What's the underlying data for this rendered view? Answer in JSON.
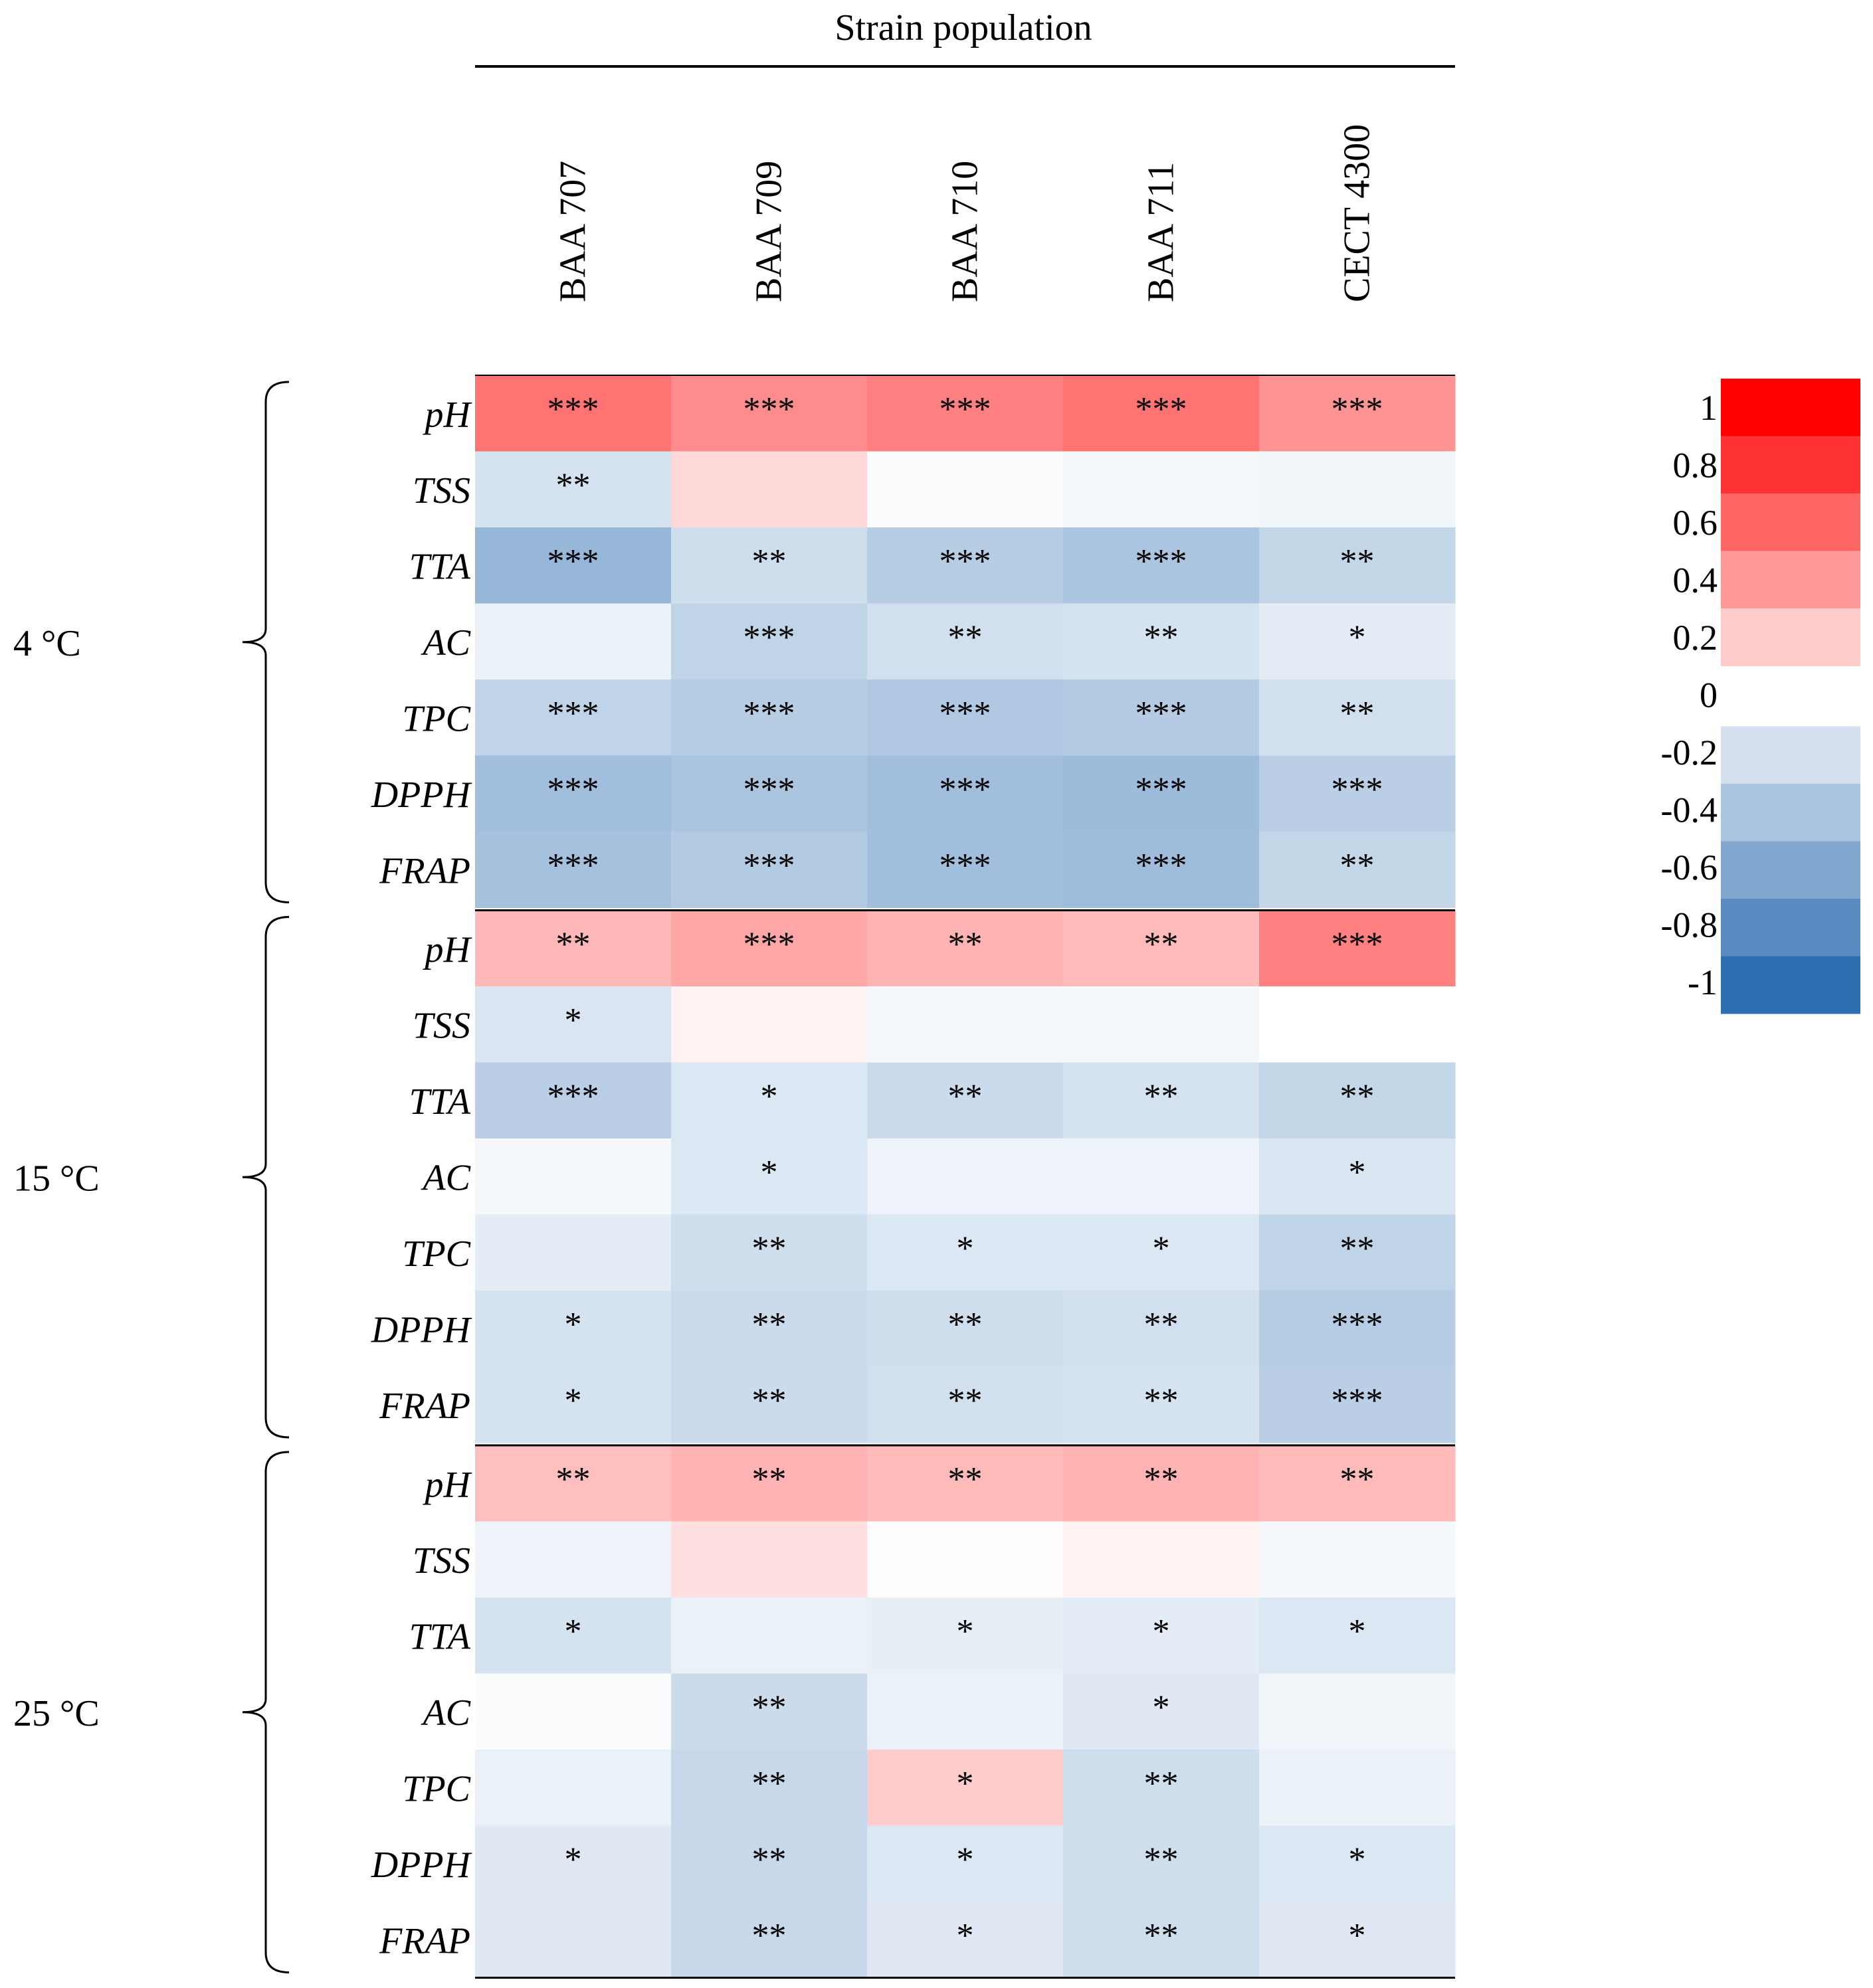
{
  "chart_data": {
    "type": "heatmap",
    "title": "Strain population",
    "columns": [
      "BAA 707",
      "BAA 709",
      "BAA 710",
      "BAA 711",
      "CECT 4300"
    ],
    "row_labels": [
      "pH",
      "TSS",
      "TTA",
      "AC",
      "TPC",
      "DPPH",
      "FRAP"
    ],
    "groups": [
      {
        "label": "4 °C",
        "values": [
          [
            0.55,
            0.45,
            0.5,
            0.55,
            0.42
          ],
          [
            -0.2,
            0.15,
            -0.02,
            -0.05,
            -0.07
          ],
          [
            -0.5,
            -0.23,
            -0.35,
            -0.4,
            -0.28
          ],
          [
            -0.1,
            -0.3,
            -0.22,
            -0.2,
            -0.13
          ],
          [
            -0.3,
            -0.35,
            -0.38,
            -0.36,
            -0.22
          ],
          [
            -0.45,
            -0.4,
            -0.45,
            -0.47,
            -0.33
          ],
          [
            -0.43,
            -0.37,
            -0.45,
            -0.46,
            -0.28
          ]
        ],
        "significance": [
          [
            "***",
            "***",
            "***",
            "***",
            "***"
          ],
          [
            "**",
            "",
            "",
            "",
            ""
          ],
          [
            "***",
            "**",
            "***",
            "***",
            "**"
          ],
          [
            "",
            "***",
            "**",
            "**",
            "*"
          ],
          [
            "***",
            "***",
            "***",
            "***",
            "**"
          ],
          [
            "***",
            "***",
            "***",
            "***",
            "***"
          ],
          [
            "***",
            "***",
            "***",
            "***",
            "**"
          ]
        ]
      },
      {
        "label": "15 °C",
        "values": [
          [
            0.28,
            0.35,
            0.3,
            0.27,
            0.5
          ],
          [
            -0.18,
            0.05,
            -0.05,
            -0.05,
            0.0
          ],
          [
            -0.33,
            -0.17,
            -0.25,
            -0.2,
            -0.28
          ],
          [
            -0.05,
            -0.17,
            -0.08,
            -0.08,
            -0.18
          ],
          [
            -0.13,
            -0.23,
            -0.17,
            -0.17,
            -0.3
          ],
          [
            -0.2,
            -0.25,
            -0.23,
            -0.22,
            -0.35
          ],
          [
            -0.2,
            -0.25,
            -0.22,
            -0.2,
            -0.33
          ]
        ],
        "significance": [
          [
            "**",
            "***",
            "**",
            "**",
            "***"
          ],
          [
            "*",
            "",
            "",
            "",
            ""
          ],
          [
            "***",
            "*",
            "**",
            "**",
            "**"
          ],
          [
            "",
            "*",
            "",
            "",
            "*"
          ],
          [
            "",
            "**",
            "*",
            "*",
            "**"
          ],
          [
            "*",
            "**",
            "**",
            "**",
            "***"
          ],
          [
            "*",
            "**",
            "**",
            "**",
            "***"
          ]
        ]
      },
      {
        "label": "25 °C",
        "values": [
          [
            0.25,
            0.3,
            0.27,
            0.3,
            0.27
          ],
          [
            -0.08,
            0.12,
            0.01,
            0.05,
            -0.05
          ],
          [
            -0.2,
            -0.1,
            -0.12,
            -0.13,
            -0.17
          ],
          [
            -0.02,
            -0.25,
            -0.1,
            -0.15,
            -0.07
          ],
          [
            -0.1,
            -0.27,
            0.2,
            -0.23,
            -0.1
          ],
          [
            -0.15,
            -0.27,
            -0.17,
            -0.23,
            -0.17
          ],
          [
            -0.15,
            -0.27,
            -0.15,
            -0.23,
            -0.15
          ]
        ],
        "significance": [
          [
            "**",
            "**",
            "**",
            "**",
            "**"
          ],
          [
            "",
            "",
            "",
            "",
            ""
          ],
          [
            "*",
            "",
            "*",
            "*",
            "*"
          ],
          [
            "",
            "**",
            "",
            "*",
            ""
          ],
          [
            "",
            "**",
            "*",
            "**",
            ""
          ],
          [
            "*",
            "**",
            "*",
            "**",
            "*"
          ],
          [
            "",
            "**",
            "*",
            "**",
            "*"
          ]
        ]
      }
    ],
    "legend": {
      "levels": [
        {
          "label": "1",
          "color": "#ff0000"
        },
        {
          "label": "0.8",
          "color": "#ff3333"
        },
        {
          "label": "0.6",
          "color": "#ff6666"
        },
        {
          "label": "0.4",
          "color": "#ff9999"
        },
        {
          "label": "0.2",
          "color": "#ffcccc"
        },
        {
          "label": "0",
          "color": "#ffffff"
        },
        {
          "label": "-0.2",
          "color": "#d5e0ee"
        },
        {
          "label": "-0.4",
          "color": "#abc4df"
        },
        {
          "label": "-0.6",
          "color": "#82a7ce"
        },
        {
          "label": "-0.8",
          "color": "#588bc0"
        },
        {
          "label": "-1",
          "color": "#2e6fb1"
        }
      ],
      "position": "right",
      "range": [
        -1,
        1
      ]
    },
    "colors": {
      "positive": "#ff0000",
      "negative": "#2e6fb1",
      "neutral": "#ffffff"
    }
  }
}
